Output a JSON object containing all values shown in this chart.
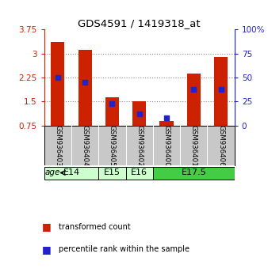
{
  "title": "GDS4591 / 1419318_at",
  "samples": [
    "GSM936403",
    "GSM936404",
    "GSM936405",
    "GSM936402",
    "GSM936400",
    "GSM936401",
    "GSM936406"
  ],
  "transformed_counts": [
    3.35,
    3.12,
    1.62,
    1.5,
    0.9,
    2.38,
    2.9
  ],
  "percentile_ranks": [
    50,
    45,
    23,
    12,
    8,
    38,
    38
  ],
  "age_spans": [
    {
      "label": "E14",
      "start": 0,
      "end": 1,
      "color": "#ccffcc"
    },
    {
      "label": "E15",
      "start": 2,
      "end": 2,
      "color": "#ccffcc"
    },
    {
      "label": "E16",
      "start": 3,
      "end": 3,
      "color": "#ccffcc"
    },
    {
      "label": "E17.5",
      "start": 4,
      "end": 6,
      "color": "#44cc44"
    }
  ],
  "ymin": 0.75,
  "ymax": 3.75,
  "yticks": [
    0.75,
    1.5,
    2.25,
    3.0,
    3.75
  ],
  "ytick_labels": [
    "0.75",
    "1.5",
    "2.25",
    "3",
    "3.75"
  ],
  "y2ticks": [
    0,
    25,
    50,
    75,
    100
  ],
  "y2tick_labels": [
    "0",
    "25",
    "50",
    "75",
    "100%"
  ],
  "bar_color": "#cc2200",
  "dot_color": "#2222cc",
  "background_color": "#ffffff",
  "gridline_color": "#888888",
  "sample_bg_color": "#c8c8c8",
  "bar_width": 0.5
}
